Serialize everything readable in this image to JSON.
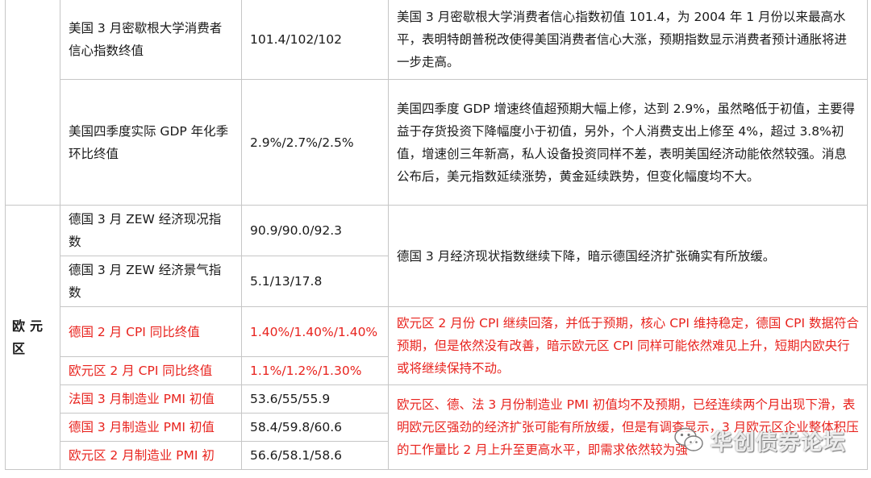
{
  "us_rows": [
    {
      "indicator": "美国 3 月密歇根大学消费者信心指数终值",
      "values": "101.4/102/102",
      "comment": "美国 3 月密歇根大学消费者信心指数初值 101.4，为 2004 年 1 月份以来最高水平，表明特朗普税改使得美国消费者信心大涨，预期指数显示消费者预计通胀将进一步走高。"
    },
    {
      "indicator": "美国四季度实际 GDP 年化季环比终值",
      "values": "2.9%/2.7%/2.5%",
      "comment": "美国四季度 GDP 增速终值超预期大幅上修，达到 2.9%，虽然略低于初值，主要得益于存货投资下降幅度小于初值，另外，个人消费支出上修至 4%，超过 3.8%初值，增速创三年新高，私人设备投资同样不差，表明美国经济动能依然较强。消息公布后，美元指数延续涨势，黄金延续跌势，但变化幅度均不大。"
    }
  ],
  "euro": {
    "region_label": "欧元区",
    "rows": [
      {
        "indicator": "德国 3 月 ZEW 经济现况指数",
        "values": "90.9/90.0/92.3"
      },
      {
        "indicator": "德国 3 月 ZEW 经济景气指数",
        "values": "5.1/13/17.8"
      },
      {
        "indicator": "德国 2 月 CPI 同比终值",
        "values": "1.40%/1.40%/1.40%"
      },
      {
        "indicator": "欧元区 2 月 CPI 同比终值",
        "values": "1.1%/1.2%/1.30%"
      },
      {
        "indicator": "法国 3 月制造业 PMI 初值",
        "values": "53.6/55/55.9"
      },
      {
        "indicator": "德国 3 月制造业 PMI 初值",
        "values": "58.4/59.8/60.6"
      },
      {
        "indicator": "欧元区 2 月制造业 PMI 初",
        "values": "56.6/58.1/58.6"
      }
    ],
    "comments": {
      "zew": "德国 3 月经济现状指数继续下降，暗示德国经济扩张确实有所放缓。",
      "cpi": "欧元区 2 月份 CPI 继续回落，并低于预期，核心 CPI 维持稳定，德国 CPI 数据符合预期，但是依然没有改善，暗示欧元区 CPI 同样可能依然难见上升，短期内欧央行或将继续保持不动。",
      "pmi": "欧元区、德、法 3 月份制造业 PMI 初值均不及预期，已经连续两个月出现下滑，表明欧元区强劲的经济扩张可能有所放缓，但是有调查显示，3 月欧元区企业整体积压的工作量比 2 月上升至更高水平，即需求依然较为强"
    }
  },
  "watermark": {
    "text": "华创债券论坛",
    "icon": "wechat-icon"
  },
  "colors": {
    "highlight": "#e8231e",
    "text": "#1a1a1a",
    "border": "#c6c6c6"
  }
}
